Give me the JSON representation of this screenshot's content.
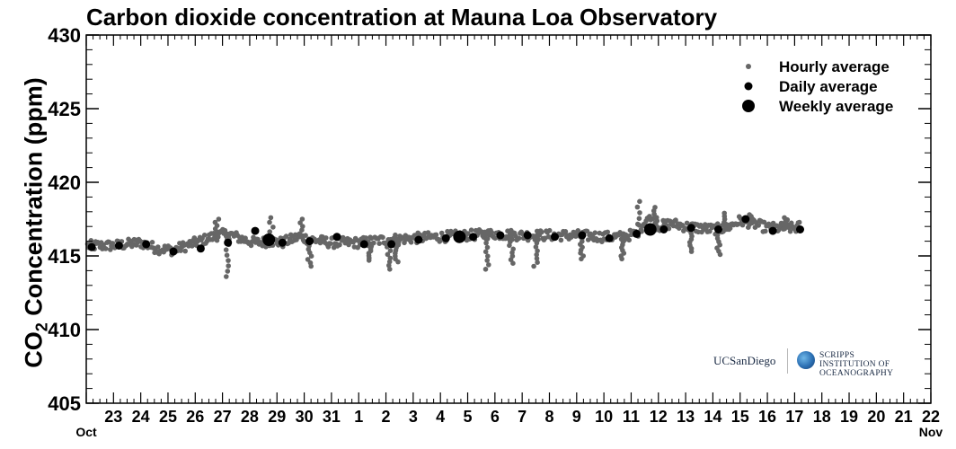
{
  "chart_data": {
    "type": "scatter",
    "title": "Carbon dioxide concentration at Mauna Loa Observatory",
    "ylabel": "CO₂ Concentration (ppm)",
    "ylabel_main": "CO",
    "ylabel_sub": "2",
    "ylabel_rest": " Concentration (ppm)",
    "ylim": [
      405,
      430
    ],
    "yticks": [
      405,
      410,
      415,
      420,
      425,
      430
    ],
    "xlim": [
      0,
      31
    ],
    "x_tick_labels": [
      "23",
      "24",
      "25",
      "26",
      "27",
      "28",
      "29",
      "30",
      "31",
      "1",
      "2",
      "3",
      "4",
      "5",
      "6",
      "7",
      "8",
      "9",
      "10",
      "11",
      "12",
      "13",
      "14",
      "15",
      "16",
      "17",
      "18",
      "19",
      "20",
      "21",
      "22"
    ],
    "month_labels": [
      {
        "label": "Oct",
        "x": 0
      },
      {
        "label": "Nov",
        "x": 31
      }
    ],
    "grid": false,
    "legend_placement": "top-right",
    "legend": [
      {
        "name": "Hourly average",
        "marker": "small",
        "color": "#666666"
      },
      {
        "name": "Daily average",
        "marker": "medium",
        "color": "#000000"
      },
      {
        "name": "Weekly average",
        "marker": "large",
        "color": "#000000"
      }
    ],
    "hourly_envelope": [
      [
        0.0,
        415.7
      ],
      [
        1.0,
        415.7
      ],
      [
        2.0,
        415.9
      ],
      [
        2.6,
        415.5
      ],
      [
        3.2,
        415.4
      ],
      [
        4.0,
        415.9
      ],
      [
        4.8,
        416.4
      ],
      [
        5.2,
        416.5
      ],
      [
        5.8,
        416.1
      ],
      [
        6.2,
        415.9
      ],
      [
        6.8,
        416.0
      ],
      [
        7.2,
        415.9
      ],
      [
        7.8,
        416.3
      ],
      [
        8.3,
        416.1
      ],
      [
        9.0,
        415.9
      ],
      [
        10.0,
        415.9
      ],
      [
        11.0,
        416.1
      ],
      [
        12.0,
        416.2
      ],
      [
        13.0,
        416.3
      ],
      [
        14.0,
        416.4
      ],
      [
        15.0,
        416.5
      ],
      [
        16.0,
        416.4
      ],
      [
        17.0,
        416.4
      ],
      [
        18.0,
        416.4
      ],
      [
        19.0,
        416.3
      ],
      [
        19.6,
        416.3
      ],
      [
        20.2,
        416.5
      ],
      [
        20.6,
        417.6
      ],
      [
        21.0,
        417.0
      ],
      [
        21.5,
        417.2
      ],
      [
        22.0,
        417.0
      ],
      [
        22.5,
        416.9
      ],
      [
        23.0,
        416.8
      ],
      [
        23.5,
        416.9
      ],
      [
        24.0,
        417.4
      ],
      [
        24.5,
        417.2
      ],
      [
        25.0,
        416.9
      ],
      [
        25.5,
        416.9
      ],
      [
        26.0,
        416.9
      ],
      [
        26.2,
        417.0
      ]
    ],
    "hourly_spread": 0.35,
    "hourly_dips": [
      {
        "x": 5.2,
        "y": 413.6
      },
      {
        "x": 8.2,
        "y": 414.3
      },
      {
        "x": 10.4,
        "y": 414.7
      },
      {
        "x": 11.1,
        "y": 414.1
      },
      {
        "x": 11.4,
        "y": 414.6
      },
      {
        "x": 14.7,
        "y": 414.1
      },
      {
        "x": 15.6,
        "y": 414.5
      },
      {
        "x": 16.5,
        "y": 414.3
      },
      {
        "x": 18.2,
        "y": 414.8
      },
      {
        "x": 19.7,
        "y": 414.8
      },
      {
        "x": 22.2,
        "y": 415.3
      },
      {
        "x": 23.2,
        "y": 415.1
      }
    ],
    "hourly_spikes": [
      {
        "x": 4.8,
        "y": 417.5
      },
      {
        "x": 6.8,
        "y": 417.6
      },
      {
        "x": 7.9,
        "y": 417.5
      },
      {
        "x": 20.3,
        "y": 418.7
      },
      {
        "x": 20.9,
        "y": 418.3
      },
      {
        "x": 23.4,
        "y": 417.9
      },
      {
        "x": 24.4,
        "y": 417.8
      },
      {
        "x": 25.7,
        "y": 417.6
      }
    ],
    "daily": [
      [
        0.2,
        415.6
      ],
      [
        1.2,
        415.7
      ],
      [
        2.2,
        415.8
      ],
      [
        3.2,
        415.3
      ],
      [
        4.2,
        415.5
      ],
      [
        5.2,
        415.9
      ],
      [
        6.2,
        416.7
      ],
      [
        7.2,
        415.9
      ],
      [
        8.2,
        416.0
      ],
      [
        9.2,
        416.3
      ],
      [
        10.2,
        415.8
      ],
      [
        11.2,
        415.8
      ],
      [
        12.2,
        416.1
      ],
      [
        13.2,
        416.2
      ],
      [
        14.2,
        416.3
      ],
      [
        15.2,
        416.4
      ],
      [
        16.2,
        416.4
      ],
      [
        17.2,
        416.3
      ],
      [
        18.2,
        416.4
      ],
      [
        19.2,
        416.2
      ],
      [
        20.2,
        416.5
      ],
      [
        21.2,
        416.8
      ],
      [
        22.2,
        416.9
      ],
      [
        23.2,
        416.8
      ],
      [
        24.2,
        417.5
      ],
      [
        25.2,
        416.7
      ],
      [
        26.2,
        416.8
      ]
    ],
    "weekly": [
      [
        6.7,
        416.1
      ],
      [
        13.7,
        416.3
      ],
      [
        20.7,
        416.8
      ]
    ]
  },
  "logos": {
    "ucsd": "UCSanDiego",
    "sio_line1": "SCRIPPS INSTITUTION OF",
    "sio_line2": "OCEANOGRAPHY"
  }
}
